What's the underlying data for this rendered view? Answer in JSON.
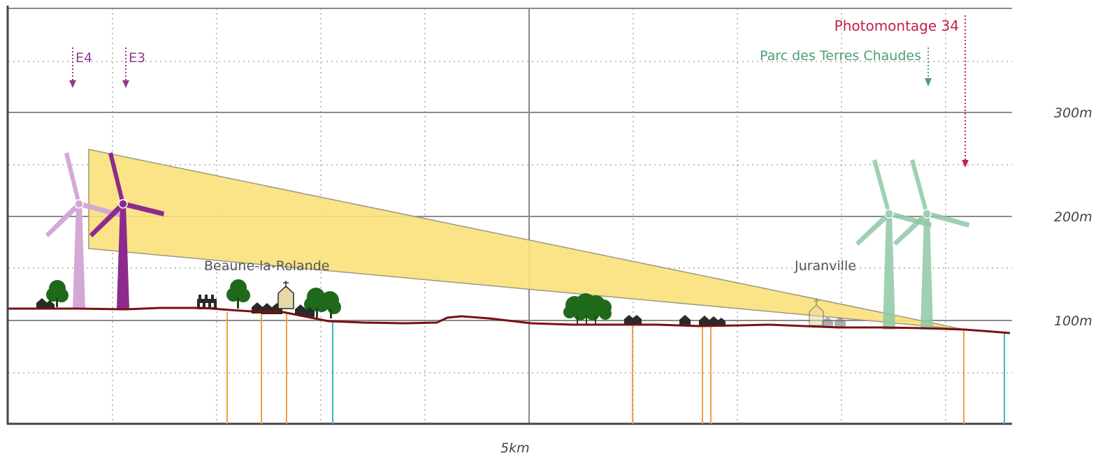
{
  "scale": {
    "distance_label": "5km"
  },
  "altitude_labels": [
    "300m",
    "200m",
    "100m"
  ],
  "annotations": {
    "photomontage": {
      "label": "Photomontage 34",
      "color": "#c0224a"
    },
    "parc": {
      "label": "Parc des Terres Chaudes",
      "color": "#4f9e73"
    },
    "turbine_e4": {
      "label": "E4",
      "color": "#8e3a8f"
    },
    "turbine_e3": {
      "label": "E3",
      "color": "#8e3a8f"
    }
  },
  "places": {
    "beaune": {
      "label": "Beaune-la-Rolande"
    },
    "juranville": {
      "label": "Juranville"
    }
  },
  "colors": {
    "terrain": "#7a0f12",
    "view_cone": "#fbe07a",
    "turbine_light": "#d4a8d6",
    "turbine_dark": "#8d2a8d",
    "turbine_green": "#8fc8a6",
    "tree": "#1e6a1a",
    "orange_line": "#f0a040",
    "blue_line": "#3bb6c9"
  },
  "icons": {
    "turbine": "wind-turbine-icon",
    "tree": "tree-icon",
    "house": "house-icon",
    "church": "church-icon",
    "factory": "factory-icon"
  }
}
